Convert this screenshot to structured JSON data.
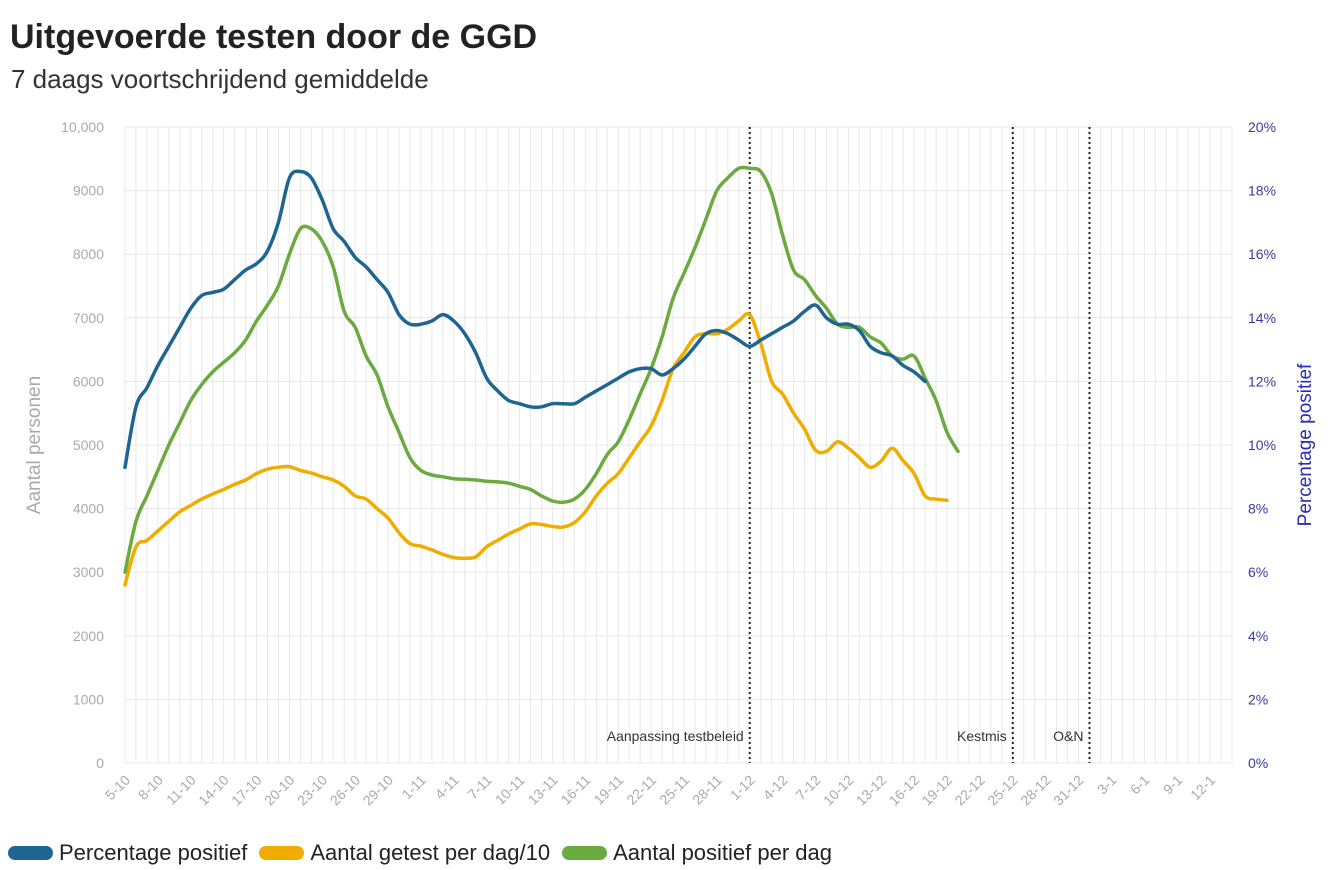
{
  "title": "Uitgevoerde testen door de GGD",
  "subtitle": "7 daags voortschrijdend gemiddelde",
  "chart_data": {
    "type": "line",
    "ylabel_left": "Aantal personen",
    "ylabel_right": "Percentage positief",
    "ylim_left": [
      0,
      10000
    ],
    "ylim_right": [
      0,
      20
    ],
    "yticks_left": [
      "0",
      "1000",
      "2000",
      "3000",
      "4000",
      "5000",
      "6000",
      "7000",
      "8000",
      "9000",
      "10,000"
    ],
    "yticks_right": [
      "0%",
      "2%",
      "4%",
      "6%",
      "8%",
      "10%",
      "12%",
      "14%",
      "16%",
      "18%",
      "20%"
    ],
    "xtick_labels": [
      "5-10",
      "8-10",
      "11-10",
      "14-10",
      "17-10",
      "20-10",
      "23-10",
      "26-10",
      "29-10",
      "1-11",
      "4-11",
      "7-11",
      "10-11",
      "13-11",
      "16-11",
      "19-11",
      "22-11",
      "25-11",
      "28-11",
      "1-12",
      "4-12",
      "7-12",
      "10-12",
      "13-12",
      "16-12",
      "19-12",
      "22-12",
      "25-12",
      "28-12",
      "31-12",
      "3-1",
      "6-1",
      "9-1",
      "12-1"
    ],
    "x_start": "5-10",
    "grid": "vertical",
    "legend_position": "bottom-left",
    "annotations": [
      {
        "label": "Aanpassing testbeleid",
        "x": "1-12"
      },
      {
        "label": "Kestmis",
        "x": "25-12"
      },
      {
        "label": "O&N",
        "x": "1-1"
      }
    ],
    "series": [
      {
        "name": "Percentage positief",
        "axis": "right",
        "color": "#1f6593",
        "points": [
          [
            0,
            9.3
          ],
          [
            1,
            11.2
          ],
          [
            2,
            11.8
          ],
          [
            3,
            12.5
          ],
          [
            4,
            13.1
          ],
          [
            5,
            13.7
          ],
          [
            6,
            14.3
          ],
          [
            7,
            14.7
          ],
          [
            8,
            14.8
          ],
          [
            9,
            14.9
          ],
          [
            10,
            15.2
          ],
          [
            11,
            15.5
          ],
          [
            12,
            15.7
          ],
          [
            13,
            16.1
          ],
          [
            14,
            17.0
          ],
          [
            15,
            18.4
          ],
          [
            16,
            18.6
          ],
          [
            17,
            18.4
          ],
          [
            18,
            17.7
          ],
          [
            19,
            16.8
          ],
          [
            20,
            16.4
          ],
          [
            21,
            15.9
          ],
          [
            22,
            15.6
          ],
          [
            23,
            15.2
          ],
          [
            24,
            14.8
          ],
          [
            25,
            14.1
          ],
          [
            26,
            13.8
          ],
          [
            27,
            13.8
          ],
          [
            28,
            13.9
          ],
          [
            29,
            14.1
          ],
          [
            30,
            13.9
          ],
          [
            31,
            13.5
          ],
          [
            32,
            12.9
          ],
          [
            33,
            12.1
          ],
          [
            34,
            11.7
          ],
          [
            35,
            11.4
          ],
          [
            36,
            11.3
          ],
          [
            37,
            11.2
          ],
          [
            38,
            11.2
          ],
          [
            39,
            11.3
          ],
          [
            40,
            11.3
          ],
          [
            41,
            11.3
          ],
          [
            42,
            11.5
          ],
          [
            43,
            11.7
          ],
          [
            44,
            11.9
          ],
          [
            45,
            12.1
          ],
          [
            46,
            12.3
          ],
          [
            47,
            12.4
          ],
          [
            48,
            12.4
          ],
          [
            49,
            12.2
          ],
          [
            50,
            12.4
          ],
          [
            51,
            12.7
          ],
          [
            52,
            13.1
          ],
          [
            53,
            13.5
          ],
          [
            54,
            13.6
          ],
          [
            55,
            13.5
          ],
          [
            56,
            13.3
          ],
          [
            57,
            13.1
          ],
          [
            58,
            13.3
          ],
          [
            59,
            13.5
          ],
          [
            60,
            13.7
          ],
          [
            61,
            13.9
          ],
          [
            62,
            14.2
          ],
          [
            63,
            14.4
          ],
          [
            64,
            14.0
          ],
          [
            65,
            13.8
          ],
          [
            66,
            13.8
          ],
          [
            67,
            13.6
          ],
          [
            68,
            13.1
          ],
          [
            69,
            12.9
          ],
          [
            70,
            12.8
          ],
          [
            71,
            12.5
          ],
          [
            72,
            12.3
          ],
          [
            73,
            12.0
          ]
        ]
      },
      {
        "name": "Aantal getest per dag/10",
        "axis": "left",
        "color": "#f0ad00",
        "points": [
          [
            0,
            2800
          ],
          [
            1,
            3400
          ],
          [
            2,
            3500
          ],
          [
            3,
            3650
          ],
          [
            4,
            3800
          ],
          [
            5,
            3950
          ],
          [
            6,
            4050
          ],
          [
            7,
            4150
          ],
          [
            8,
            4230
          ],
          [
            9,
            4300
          ],
          [
            10,
            4380
          ],
          [
            11,
            4450
          ],
          [
            12,
            4550
          ],
          [
            13,
            4620
          ],
          [
            14,
            4650
          ],
          [
            15,
            4660
          ],
          [
            16,
            4600
          ],
          [
            17,
            4560
          ],
          [
            18,
            4500
          ],
          [
            19,
            4450
          ],
          [
            20,
            4350
          ],
          [
            21,
            4200
          ],
          [
            22,
            4150
          ],
          [
            23,
            4000
          ],
          [
            24,
            3850
          ],
          [
            25,
            3620
          ],
          [
            26,
            3450
          ],
          [
            27,
            3410
          ],
          [
            28,
            3350
          ],
          [
            29,
            3280
          ],
          [
            30,
            3230
          ],
          [
            31,
            3220
          ],
          [
            32,
            3240
          ],
          [
            33,
            3400
          ],
          [
            34,
            3500
          ],
          [
            35,
            3600
          ],
          [
            36,
            3680
          ],
          [
            37,
            3760
          ],
          [
            38,
            3750
          ],
          [
            39,
            3720
          ],
          [
            40,
            3710
          ],
          [
            41,
            3780
          ],
          [
            42,
            3950
          ],
          [
            43,
            4200
          ],
          [
            44,
            4400
          ],
          [
            45,
            4550
          ],
          [
            46,
            4800
          ],
          [
            47,
            5050
          ],
          [
            48,
            5300
          ],
          [
            49,
            5700
          ],
          [
            50,
            6200
          ],
          [
            51,
            6450
          ],
          [
            52,
            6700
          ],
          [
            53,
            6750
          ],
          [
            54,
            6750
          ],
          [
            55,
            6820
          ],
          [
            56,
            6950
          ],
          [
            57,
            7050
          ],
          [
            58,
            6600
          ],
          [
            59,
            6000
          ],
          [
            60,
            5800
          ],
          [
            61,
            5500
          ],
          [
            62,
            5250
          ],
          [
            63,
            4920
          ],
          [
            64,
            4900
          ],
          [
            65,
            5050
          ],
          [
            66,
            4950
          ],
          [
            67,
            4800
          ],
          [
            68,
            4650
          ],
          [
            69,
            4750
          ],
          [
            70,
            4950
          ],
          [
            71,
            4750
          ],
          [
            72,
            4550
          ],
          [
            73,
            4200
          ],
          [
            74,
            4150
          ],
          [
            75,
            4130
          ]
        ]
      },
      {
        "name": "Aantal positief per dag",
        "axis": "left",
        "color": "#6aaa3f",
        "points": [
          [
            0,
            3000
          ],
          [
            1,
            3800
          ],
          [
            2,
            4200
          ],
          [
            3,
            4600
          ],
          [
            4,
            5000
          ],
          [
            5,
            5350
          ],
          [
            6,
            5700
          ],
          [
            7,
            5950
          ],
          [
            8,
            6150
          ],
          [
            9,
            6300
          ],
          [
            10,
            6450
          ],
          [
            11,
            6650
          ],
          [
            12,
            6950
          ],
          [
            13,
            7200
          ],
          [
            14,
            7500
          ],
          [
            15,
            8000
          ],
          [
            16,
            8400
          ],
          [
            17,
            8400
          ],
          [
            18,
            8200
          ],
          [
            19,
            7800
          ],
          [
            20,
            7100
          ],
          [
            21,
            6850
          ],
          [
            22,
            6400
          ],
          [
            23,
            6100
          ],
          [
            24,
            5600
          ],
          [
            25,
            5200
          ],
          [
            26,
            4800
          ],
          [
            27,
            4600
          ],
          [
            28,
            4530
          ],
          [
            29,
            4500
          ],
          [
            30,
            4470
          ],
          [
            31,
            4460
          ],
          [
            32,
            4450
          ],
          [
            33,
            4430
          ],
          [
            34,
            4420
          ],
          [
            35,
            4400
          ],
          [
            36,
            4350
          ],
          [
            37,
            4300
          ],
          [
            38,
            4200
          ],
          [
            39,
            4120
          ],
          [
            40,
            4100
          ],
          [
            41,
            4150
          ],
          [
            42,
            4300
          ],
          [
            43,
            4550
          ],
          [
            44,
            4850
          ],
          [
            45,
            5050
          ],
          [
            46,
            5400
          ],
          [
            47,
            5800
          ],
          [
            48,
            6200
          ],
          [
            49,
            6700
          ],
          [
            50,
            7300
          ],
          [
            51,
            7700
          ],
          [
            52,
            8100
          ],
          [
            53,
            8550
          ],
          [
            54,
            9000
          ],
          [
            55,
            9200
          ],
          [
            56,
            9350
          ],
          [
            57,
            9350
          ],
          [
            58,
            9300
          ],
          [
            59,
            8950
          ],
          [
            60,
            8300
          ],
          [
            61,
            7750
          ],
          [
            62,
            7600
          ],
          [
            63,
            7350
          ],
          [
            64,
            7150
          ],
          [
            65,
            6900
          ],
          [
            66,
            6850
          ],
          [
            67,
            6850
          ],
          [
            68,
            6700
          ],
          [
            69,
            6600
          ],
          [
            70,
            6400
          ],
          [
            71,
            6350
          ],
          [
            72,
            6400
          ],
          [
            73,
            6050
          ],
          [
            74,
            5700
          ],
          [
            75,
            5200
          ],
          [
            76,
            4900
          ]
        ]
      }
    ]
  }
}
